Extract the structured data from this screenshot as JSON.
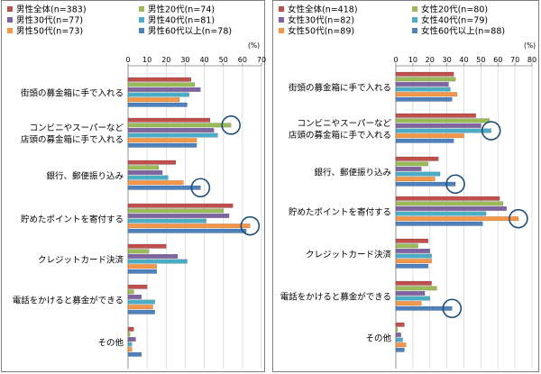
{
  "chart_data": [
    {
      "type": "bar",
      "orientation": "horizontal",
      "unit_label": "(%)",
      "xlim": [
        0,
        70
      ],
      "xticks": [
        "0",
        "10",
        "20",
        "30",
        "40",
        "50",
        "60",
        "70"
      ],
      "categories": [
        "街頭の募金箱に手で入れる",
        "コンビニやスーパーなど\n店頭の募金箱に手で入れる",
        "銀行、郵便振り込み",
        "貯めたポイントを寄付する",
        "クレジットカード決済",
        "電話をかけると募金ができる",
        "その他"
      ],
      "series": [
        {
          "name": "男性全体(n=383)",
          "color": "#c0504d",
          "values": [
            33,
            43,
            25,
            55,
            20,
            10,
            3
          ]
        },
        {
          "name": "男性20代(n=74)",
          "color": "#9bbb59",
          "values": [
            35,
            54,
            16,
            50,
            11,
            3,
            1
          ]
        },
        {
          "name": "男性30代(n=77)",
          "color": "#8064a2",
          "values": [
            38,
            45,
            18,
            53,
            26,
            7,
            4
          ]
        },
        {
          "name": "男性40代(n=81)",
          "color": "#4bacc6",
          "values": [
            32,
            47,
            21,
            41,
            31,
            14,
            2
          ]
        },
        {
          "name": "男性50代(n=73)",
          "color": "#f79646",
          "values": [
            27,
            36,
            29,
            64,
            15,
            13,
            2
          ]
        },
        {
          "name": "男性60代以上(n=78)",
          "color": "#4f81bd",
          "values": [
            31,
            36,
            38,
            62,
            15,
            14,
            7
          ]
        }
      ],
      "circled": [
        [
          1,
          1
        ],
        [
          2,
          5
        ],
        [
          3,
          4
        ]
      ],
      "circle_color": "#1f4e79"
    },
    {
      "type": "bar",
      "orientation": "horizontal",
      "unit_label": "(%)",
      "xlim": [
        0,
        80
      ],
      "xticks": [
        "0",
        "10",
        "20",
        "30",
        "40",
        "50",
        "60",
        "70",
        "80"
      ],
      "categories": [
        "街頭の募金箱に手で入れる",
        "コンビニやスーパーなど\n店頭の募金箱に手で入れる",
        "銀行、郵便振り込み",
        "貯めたポイントを寄付する",
        "クレジットカード決済",
        "電話をかけると募金ができる",
        "その他"
      ],
      "series": [
        {
          "name": "女性全体(n=418)",
          "color": "#c0504d",
          "values": [
            34,
            47,
            25,
            61,
            19,
            21,
            5
          ]
        },
        {
          "name": "女性20代(n=80)",
          "color": "#9bbb59",
          "values": [
            35,
            55,
            19,
            63,
            13,
            24,
            1
          ]
        },
        {
          "name": "女性30代(n=82)",
          "color": "#8064a2",
          "values": [
            31,
            50,
            15,
            65,
            20,
            17,
            3
          ]
        },
        {
          "name": "女性40代(n=79)",
          "color": "#4bacc6",
          "values": [
            32,
            56,
            26,
            53,
            21,
            20,
            4
          ]
        },
        {
          "name": "女性50代(n=89)",
          "color": "#f79646",
          "values": [
            36,
            40,
            23,
            72,
            21,
            15,
            6
          ]
        },
        {
          "name": "女性60代以上(n=88)",
          "color": "#4f81bd",
          "values": [
            33,
            34,
            35,
            51,
            19,
            33,
            5
          ]
        }
      ],
      "circled": [
        [
          1,
          3
        ],
        [
          2,
          5
        ],
        [
          3,
          4
        ],
        [
          5,
          5
        ]
      ],
      "circle_color": "#1f4e79"
    }
  ]
}
